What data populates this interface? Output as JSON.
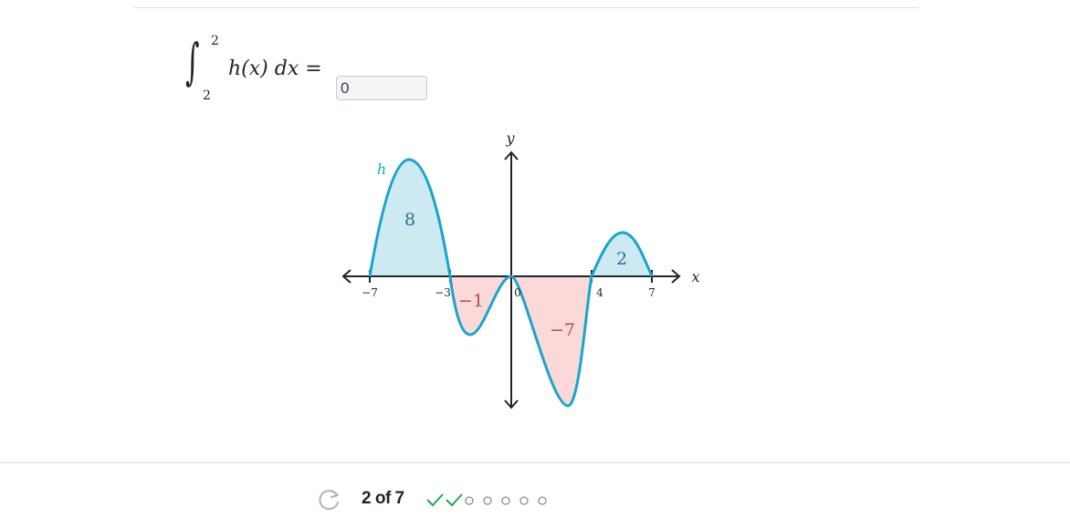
{
  "question": {
    "upper_limit": "2",
    "lower_limit": "2",
    "integrand": "h(x) dx =",
    "answer_value": "0"
  },
  "graph": {
    "y_axis_label": "y",
    "x_axis_label": "x",
    "function_label": "h",
    "tick_labels": [
      "−7",
      "−3",
      "0",
      "4",
      "7"
    ],
    "region_labels": {
      "region_1": "8",
      "region_2": "−1",
      "region_3": "−7",
      "region_4": "2"
    },
    "colors": {
      "curve": "#1aa5cb",
      "positive_fill": "#cdeaf3",
      "negative_fill": "#fbd9d9",
      "negative_label": "#b8495c",
      "positive_label": "#2e6e8a"
    }
  },
  "footer": {
    "progress_text": "2 of 7",
    "completed": 2,
    "total": 7,
    "check_color": "#1fab54"
  }
}
